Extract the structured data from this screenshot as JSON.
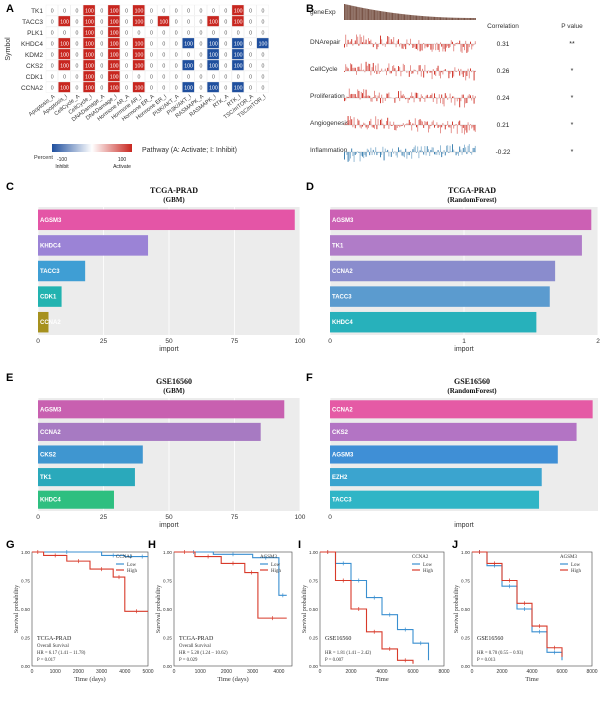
{
  "panel_labels": [
    "A",
    "B",
    "C",
    "D",
    "E",
    "F",
    "G",
    "H",
    "I",
    "J"
  ],
  "heatmap": {
    "ylabel": "Symbol",
    "rows": [
      "TK1",
      "TACC3",
      "PLK1",
      "KHDC4",
      "KDM2",
      "CKS2",
      "CDK1",
      "CCNA2"
    ],
    "cols": [
      "Apoptosis_A",
      "Apoptosis_I",
      "CellCycle_A",
      "CellCycle_I",
      "DNADamage_A",
      "DNADamage_I",
      "Hormone AR_A",
      "Hormone AR_I",
      "Hormone ER_A",
      "Hormone ER_I",
      "PI3K/AKT_A",
      "PI3K/AKT_I",
      "RASMAPK_A",
      "RASMAPK_I",
      "RTK_A",
      "RTK_I",
      "TSC/mTOR_A",
      "TSC/mTOR_I"
    ],
    "cells": [
      [
        0,
        0,
        0,
        100,
        0,
        100,
        0,
        100,
        0,
        0,
        0,
        0,
        0,
        0,
        0,
        100,
        0,
        0
      ],
      [
        0,
        100,
        0,
        100,
        0,
        100,
        0,
        100,
        0,
        100,
        0,
        0,
        0,
        100,
        0,
        100,
        0,
        0
      ],
      [
        0,
        0,
        0,
        100,
        0,
        100,
        0,
        0,
        0,
        0,
        0,
        0,
        0,
        0,
        0,
        0,
        0,
        0
      ],
      [
        0,
        100,
        0,
        100,
        0,
        100,
        0,
        100,
        0,
        0,
        0,
        -100,
        0,
        -100,
        0,
        -100,
        0,
        -100
      ],
      [
        0,
        100,
        0,
        100,
        0,
        100,
        0,
        100,
        0,
        0,
        0,
        0,
        0,
        -100,
        0,
        -100,
        0,
        0
      ],
      [
        0,
        100,
        0,
        100,
        0,
        100,
        0,
        100,
        0,
        0,
        0,
        -100,
        0,
        -100,
        0,
        -100,
        0,
        0
      ],
      [
        0,
        0,
        0,
        100,
        0,
        100,
        0,
        0,
        0,
        0,
        0,
        0,
        0,
        0,
        0,
        0,
        0,
        0
      ],
      [
        0,
        100,
        0,
        100,
        0,
        100,
        0,
        100,
        0,
        0,
        0,
        -100,
        0,
        -100,
        0,
        -100,
        0,
        0
      ]
    ],
    "legend_title": "Percent",
    "legend_min_label": "-100",
    "legend_max_label": "100",
    "legend_inhibit": "Inhibit",
    "legend_activate": "Activate",
    "pathway_caption": "Pathway (A: Activate; I: Inhibit)",
    "colors": {
      "activate": "#c8261f",
      "inhibit": "#1f4f9e",
      "zero": "#ffffff"
    }
  },
  "panel_b": {
    "top_label": "geneExp",
    "header_correlation": "Correlation",
    "header_pvalue": "P value",
    "rows": [
      {
        "label": "DNArepair",
        "correlation": "0.31",
        "p": "**",
        "color": "#d0352b"
      },
      {
        "label": "CellCycle",
        "correlation": "0.26",
        "p": "*",
        "color": "#d0352b"
      },
      {
        "label": "Proliferation",
        "correlation": "0.24",
        "p": "*",
        "color": "#d0352b"
      },
      {
        "label": "Angiogenesis",
        "correlation": "0.21",
        "p": "*",
        "color": "#d0352b"
      },
      {
        "label": "Inflammation",
        "correlation": "-0.22",
        "p": "*",
        "color": "#3a7fb0"
      }
    ]
  },
  "chart_data": [
    {
      "panel": "C",
      "type": "bar",
      "title": "TCGA-PRAD",
      "subtitle": "(GBM)",
      "xlabel": "import",
      "xlim": [
        0,
        100
      ],
      "xticks": [
        0,
        25,
        50,
        75,
        100
      ],
      "categories": [
        "AGSM3",
        "KHDC4",
        "TACC3",
        "CDK1",
        "CCNA2"
      ],
      "values": [
        98,
        42,
        18,
        9,
        4
      ],
      "colors": [
        "#e455a6",
        "#9b83d6",
        "#3f9ed4",
        "#22b3b0",
        "#a6911e"
      ]
    },
    {
      "panel": "D",
      "type": "bar",
      "title": "TCGA-PRAD",
      "subtitle": "(RandomForest)",
      "xlabel": "import",
      "xlim": [
        0,
        2
      ],
      "xticks": [
        0,
        1,
        2
      ],
      "categories": [
        "AGSM3",
        "TK1",
        "CCNA2",
        "TACC3",
        "KHDC4"
      ],
      "values": [
        1.95,
        1.88,
        1.68,
        1.64,
        1.54
      ],
      "colors": [
        "#cc60b4",
        "#b07cc8",
        "#8a8ccd",
        "#5b9bcf",
        "#27b1bb"
      ]
    },
    {
      "panel": "E",
      "type": "bar",
      "title": "GSE16560",
      "subtitle": "(GBM)",
      "xlabel": "import",
      "xlim": [
        0,
        100
      ],
      "xticks": [
        0,
        25,
        50,
        75,
        100
      ],
      "categories": [
        "AGSM3",
        "CCNA2",
        "CKS2",
        "TK1",
        "KHDC4"
      ],
      "values": [
        94,
        85,
        40,
        37,
        29
      ],
      "colors": [
        "#c860b0",
        "#a77ac2",
        "#3f96d0",
        "#2aa9bb",
        "#2ebf80"
      ]
    },
    {
      "panel": "F",
      "type": "bar",
      "title": "GSE16560",
      "subtitle": "(RandomForest)",
      "xlabel": "import",
      "xlim": [
        0,
        1
      ],
      "xticks": [
        0
      ],
      "categories": [
        "CCNA2",
        "CKS2",
        "AGSM3",
        "EZH2",
        "TACC3"
      ],
      "values": [
        0.98,
        0.92,
        0.85,
        0.79,
        0.78
      ],
      "colors": [
        "#e55aa5",
        "#b374c4",
        "#3f8fd6",
        "#3ba4cf",
        "#30b5c6"
      ]
    },
    {
      "panel": "G",
      "type": "line",
      "ylabel": "Survival probability",
      "xlabel": "Time (days)",
      "xticks": [
        0,
        1000,
        2000,
        3000,
        4000,
        5000
      ],
      "xlim": [
        0,
        5000
      ],
      "ylim": [
        0,
        1
      ],
      "legend_title": "CCNA2",
      "series": [
        {
          "name": "Low",
          "color": "#3a8fd0",
          "x": [
            0,
            3000,
            4000,
            4500,
            5000
          ],
          "y": [
            1,
            0.97,
            0.96,
            0.96,
            0.96
          ]
        },
        {
          "name": "High",
          "color": "#d83a2a",
          "x": [
            0,
            500,
            1500,
            2500,
            3500,
            4000,
            5000
          ],
          "y": [
            1,
            0.97,
            0.92,
            0.85,
            0.78,
            0.48,
            0.48
          ]
        }
      ],
      "annot": {
        "cohort": "TCGA-PRAD",
        "metric": "Overall Survival",
        "hr": "HR = 6.17 (1.41 – 11.78)",
        "p": "P = 0.017"
      }
    },
    {
      "panel": "H",
      "type": "line",
      "ylabel": "Survival probability",
      "xlabel": "Time (days)",
      "xticks": [
        0,
        1000,
        2000,
        3000,
        4000
      ],
      "xlim": [
        0,
        4500
      ],
      "ylim": [
        0,
        1
      ],
      "legend_title": "AGSM3",
      "series": [
        {
          "name": "Low",
          "color": "#3a8fd0",
          "x": [
            0,
            1500,
            3000,
            4000,
            4300
          ],
          "y": [
            1,
            0.98,
            0.95,
            0.62,
            0.62
          ]
        },
        {
          "name": "High",
          "color": "#d83a2a",
          "x": [
            0,
            800,
            1800,
            2700,
            3200,
            4300
          ],
          "y": [
            1,
            0.96,
            0.9,
            0.82,
            0.42,
            0.42
          ]
        }
      ],
      "annot": {
        "cohort": "TCGA-PRAD",
        "metric": "Overall Survival",
        "hr": "HR = 5.28 (1.24 – 10.62)",
        "p": "P = 0.029"
      }
    },
    {
      "panel": "I",
      "type": "line",
      "ylabel": "Survival probability",
      "xlabel": "Time",
      "xticks": [
        0,
        2000,
        4000,
        6000,
        8000
      ],
      "xlim": [
        0,
        8000
      ],
      "ylim": [
        0,
        1
      ],
      "legend_title": "CCNA2",
      "series": [
        {
          "name": "Low",
          "color": "#3a8fd0",
          "x": [
            0,
            1000,
            2000,
            3000,
            4000,
            5000,
            6000,
            7000
          ],
          "y": [
            1,
            0.9,
            0.75,
            0.6,
            0.45,
            0.32,
            0.2,
            0.05
          ]
        },
        {
          "name": "High",
          "color": "#d83a2a",
          "x": [
            0,
            1000,
            2000,
            3000,
            4000,
            5000,
            6000
          ],
          "y": [
            1,
            0.75,
            0.5,
            0.3,
            0.15,
            0.05,
            0.02
          ]
        }
      ],
      "annot": {
        "cohort": "GSE16560",
        "metric": "",
        "hr": "HR = 1.81 (1.41 – 2.42)",
        "p": "P = 0.007"
      }
    },
    {
      "panel": "J",
      "type": "line",
      "ylabel": "Survival probability",
      "xlabel": "Time",
      "xticks": [
        0,
        2000,
        4000,
        6000,
        8000
      ],
      "xlim": [
        0,
        8000
      ],
      "ylim": [
        0,
        1
      ],
      "legend_title": "AGSM3",
      "series": [
        {
          "name": "Low",
          "color": "#3a8fd0",
          "x": [
            0,
            1000,
            2000,
            3000,
            4000,
            5000,
            6000
          ],
          "y": [
            1,
            0.88,
            0.7,
            0.5,
            0.3,
            0.12,
            0.05
          ]
        },
        {
          "name": "High",
          "color": "#d83a2a",
          "x": [
            0,
            1000,
            2000,
            3000,
            4000,
            5000,
            6000
          ],
          "y": [
            1,
            0.9,
            0.75,
            0.55,
            0.35,
            0.16,
            0.08
          ]
        }
      ],
      "annot": {
        "cohort": "GSE16560",
        "metric": "",
        "hr": "HR = 0.70 (0.55 – 0.93)",
        "p": "P = 0.013"
      }
    }
  ]
}
